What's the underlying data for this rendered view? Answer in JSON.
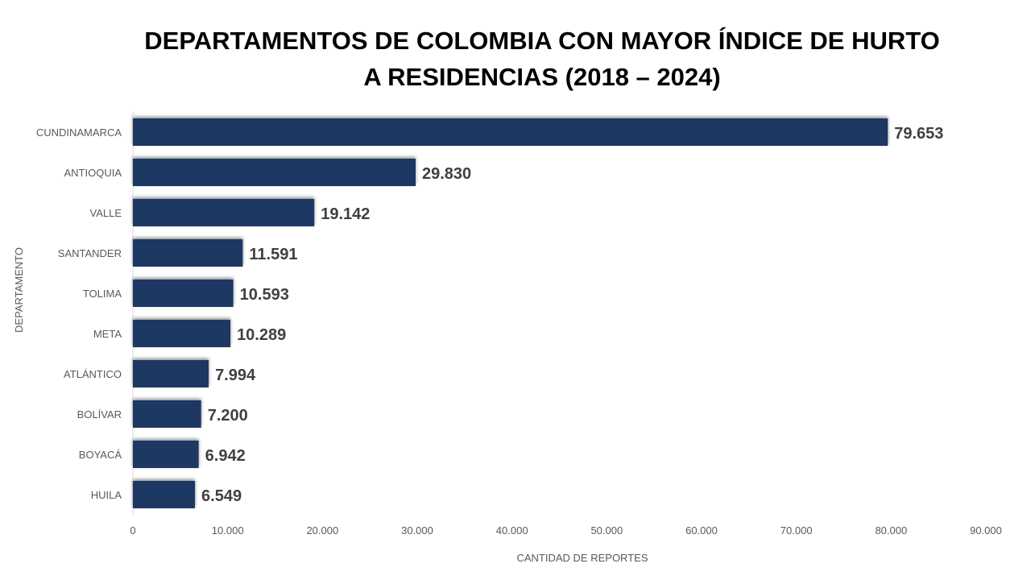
{
  "chart_data": {
    "type": "bar",
    "orientation": "horizontal",
    "title_lines": [
      "DEPARTAMENTOS DE COLOMBIA CON MAYOR ÍNDICE DE HURTO",
      "A RESIDENCIAS (2018 – 2024)"
    ],
    "categories": [
      "CUNDINAMARCA",
      "ANTIOQUIA",
      "VALLE",
      "SANTANDER",
      "TOLIMA",
      "META",
      "ATLÁNTICO",
      "BOLÍVAR",
      "BOYACÁ",
      "HUILA"
    ],
    "values": [
      79653,
      29830,
      19142,
      11591,
      10593,
      10289,
      7994,
      7200,
      6942,
      6549
    ],
    "value_labels": [
      "79.653",
      "29.830",
      "19.142",
      "11.591",
      "10.593",
      "10.289",
      "7.994",
      "7.200",
      "6.942",
      "6.549"
    ],
    "xlabel": "CANTIDAD DE REPORTES",
    "ylabel": "DEPARTAMENTO",
    "xlim": [
      0,
      90000
    ],
    "xticks": [
      0,
      10000,
      20000,
      30000,
      40000,
      50000,
      60000,
      70000,
      80000,
      90000
    ],
    "xtick_labels": [
      "0",
      "10.000",
      "20.000",
      "30.000",
      "40.000",
      "50.000",
      "60.000",
      "70.000",
      "80.000",
      "90.000"
    ],
    "grid": false,
    "legend": "none",
    "bar_color": "#1F3864"
  }
}
